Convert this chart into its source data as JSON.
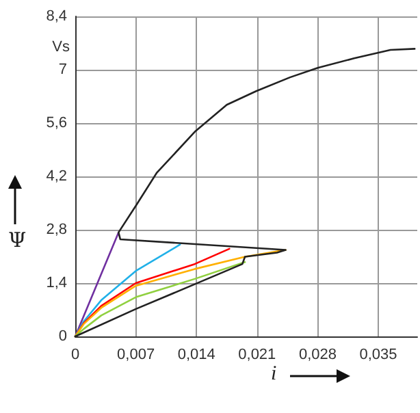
{
  "chart_data": {
    "type": "line",
    "xlabel": "i",
    "ylabel": "Ψ",
    "annotations": [
      "Vs"
    ],
    "xlim": [
      0,
      0.0395
    ],
    "ylim": [
      0,
      8.4
    ],
    "xticks": [
      0,
      {
        "value": 0.007,
        "label": "0,007"
      },
      {
        "value": 0.014,
        "label": "0,014"
      },
      {
        "value": 0.021,
        "label": "0,021"
      },
      {
        "value": 0.028,
        "label": "0,028"
      },
      {
        "value": 0.035,
        "label": "0,035"
      }
    ],
    "yticks": [
      0,
      {
        "value": 1.4,
        "label": "1,4"
      },
      {
        "value": 2.8,
        "label": "2,8"
      },
      {
        "value": 4.2,
        "label": "4,2"
      },
      {
        "value": 5.6,
        "label": "5,6"
      },
      7,
      {
        "value": 8.4,
        "label": "8,4"
      }
    ],
    "grid": true,
    "marker": "none",
    "line_style": "solid",
    "series": [
      {
        "color": "#7030a0",
        "x": [
          0,
          0.005
        ],
        "values": [
          0,
          2.73
        ]
      },
      {
        "color": "#20b0e8",
        "x": [
          0,
          0.001,
          0.003,
          0.007,
          0.0121
        ],
        "values": [
          0,
          0.4,
          0.95,
          1.72,
          2.41
        ]
      },
      {
        "color": "#ff0000",
        "x": [
          0,
          0.001,
          0.003,
          0.007,
          0.0138,
          0.0178
        ],
        "values": [
          0,
          0.35,
          0.8,
          1.4,
          1.9,
          2.3
        ]
      },
      {
        "color": "#ffb000",
        "x": [
          0,
          0.001,
          0.003,
          0.007,
          0.0138,
          0.0196,
          0.0243
        ],
        "values": [
          0,
          0.33,
          0.75,
          1.33,
          1.77,
          2.09,
          2.27
        ]
      },
      {
        "color": "#90d040",
        "x": [
          0,
          0.001,
          0.003,
          0.007,
          0.0138,
          0.0196
        ],
        "values": [
          0,
          0.2,
          0.55,
          1.03,
          1.51,
          1.95
        ]
      },
      {
        "color": "#222222",
        "x": [
          0,
          0.007,
          0.0138,
          0.0193,
          0.0196,
          0.0233,
          0.0243,
          0.0052,
          0.005,
          0.00706,
          0.0094,
          0.0138,
          0.0175,
          0.0209,
          0.0248,
          0.028,
          0.0322,
          0.0364,
          0.0392
        ],
        "values": [
          0,
          0.72,
          1.37,
          1.9,
          2.09,
          2.2,
          2.27,
          2.55,
          2.73,
          3.45,
          4.29,
          5.37,
          6.08,
          6.44,
          6.8,
          7.05,
          7.3,
          7.52,
          7.55
        ]
      }
    ]
  }
}
